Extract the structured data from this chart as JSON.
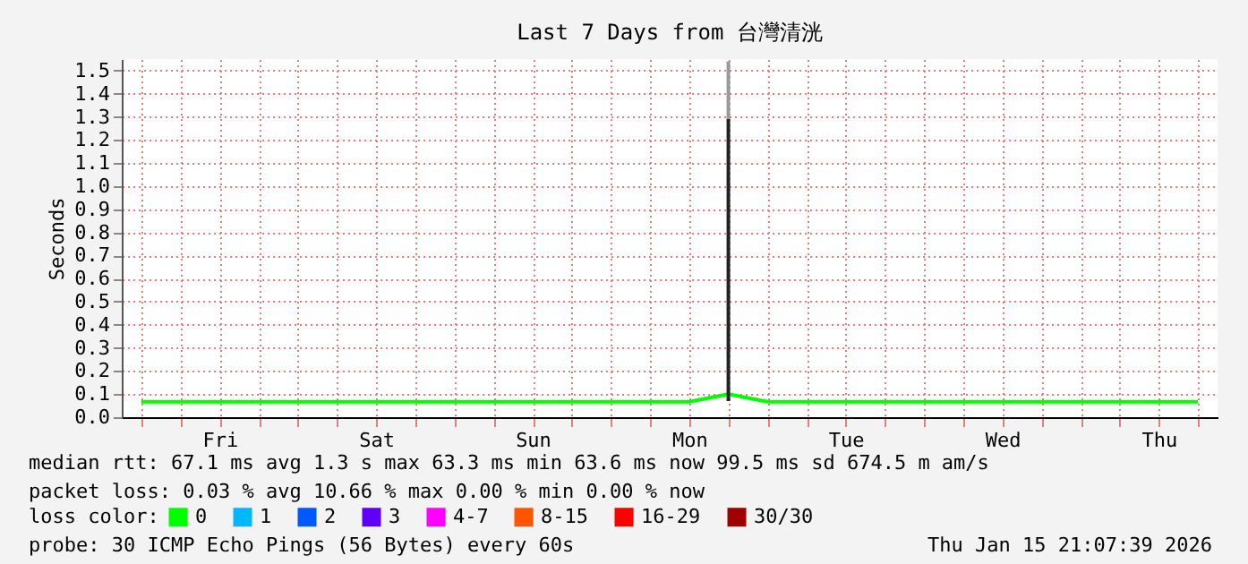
{
  "chart_data": {
    "type": "line",
    "title": "Last 7 Days from 台灣清洸",
    "ylabel": "Seconds",
    "categories": [
      null,
      null,
      "Fri",
      null,
      null,
      null,
      "Sat",
      null,
      null,
      null,
      "Sun",
      null,
      null,
      null,
      "Mon",
      null,
      null,
      null,
      "Tue",
      null,
      null,
      null,
      "Wed",
      null,
      null,
      null,
      "Thu",
      null
    ],
    "ylim": [
      0,
      1.55
    ],
    "yticks": [
      {
        "value": 0,
        "label": "0.0"
      },
      {
        "value": 0.1,
        "label": "0.1"
      },
      {
        "value": 0.2,
        "label": "0.2"
      },
      {
        "value": 0.3,
        "label": "0.3"
      },
      {
        "value": 0.4,
        "label": "0.4"
      },
      {
        "value": 0.5,
        "label": "0.5"
      },
      {
        "value": 0.6,
        "label": "0.6"
      },
      {
        "value": 0.7,
        "label": "0.7"
      },
      {
        "value": 0.8,
        "label": "0.8"
      },
      {
        "value": 0.9,
        "label": "0.9"
      },
      {
        "value": 1.0,
        "label": "1.0"
      },
      {
        "value": 1.1,
        "label": "1.1"
      },
      {
        "value": 1.2,
        "label": "1.2"
      },
      {
        "value": 1.3,
        "label": "1.3"
      },
      {
        "value": 1.4,
        "label": "1.4"
      },
      {
        "value": 1.5,
        "label": "1.5"
      }
    ],
    "grid": true,
    "legend": "bottom",
    "legend_title": "loss color:",
    "marker": "none",
    "line_style": "solid",
    "series": [
      {
        "name": "0",
        "color": "#00ff00",
        "values": [
          0.067,
          0.067,
          0.067,
          0.067,
          0.067,
          0.067,
          0.067,
          0.067,
          0.067,
          0.067,
          0.067,
          0.067,
          0.067,
          0.067,
          0.067,
          0.1,
          0.067,
          0.067,
          0.067,
          0.067,
          0.067,
          0.067,
          0.067,
          0.067,
          0.067,
          0.067,
          0.067,
          0.067
        ]
      },
      {
        "name": "1",
        "color": "#00b8ff",
        "values": [
          null,
          null,
          null,
          null,
          null,
          null,
          null,
          null,
          null,
          null,
          null,
          null,
          null,
          null,
          null,
          null,
          null,
          null,
          null,
          null,
          null,
          null,
          null,
          null,
          null,
          null,
          null,
          null
        ]
      },
      {
        "name": "2",
        "color": "#0059ff",
        "values": [
          null,
          null,
          null,
          null,
          null,
          null,
          null,
          null,
          null,
          null,
          null,
          null,
          null,
          null,
          null,
          null,
          null,
          null,
          null,
          null,
          null,
          null,
          null,
          null,
          null,
          null,
          null,
          null
        ]
      },
      {
        "name": "3",
        "color": "#5e00ff",
        "values": [
          null,
          null,
          null,
          null,
          null,
          null,
          null,
          null,
          null,
          null,
          null,
          null,
          null,
          null,
          null,
          null,
          null,
          null,
          null,
          null,
          null,
          null,
          null,
          null,
          null,
          null,
          null,
          null
        ]
      },
      {
        "name": "4-7",
        "color": "#ff00ff",
        "values": [
          null,
          null,
          null,
          null,
          null,
          null,
          null,
          null,
          null,
          null,
          null,
          null,
          null,
          null,
          null,
          null,
          null,
          null,
          null,
          null,
          null,
          null,
          null,
          null,
          null,
          null,
          null,
          null
        ]
      },
      {
        "name": "8-15",
        "color": "#ff5500",
        "values": [
          null,
          null,
          null,
          null,
          null,
          null,
          null,
          null,
          null,
          null,
          null,
          null,
          null,
          null,
          null,
          null,
          null,
          null,
          null,
          null,
          null,
          null,
          null,
          null,
          null,
          null,
          null,
          null
        ]
      },
      {
        "name": "16-29",
        "color": "#ff0000",
        "values": [
          null,
          null,
          null,
          null,
          null,
          null,
          null,
          null,
          null,
          null,
          null,
          null,
          null,
          null,
          null,
          null,
          null,
          null,
          null,
          null,
          null,
          null,
          null,
          null,
          null,
          null,
          null,
          null
        ]
      },
      {
        "name": "30/30",
        "color": "#a10000",
        "values": [
          null,
          null,
          null,
          null,
          null,
          null,
          null,
          null,
          null,
          null,
          null,
          null,
          null,
          null,
          null,
          null,
          null,
          null,
          null,
          null,
          null,
          null,
          null,
          null,
          null,
          null,
          null,
          null
        ]
      },
      {
        "type": "bar",
        "color": "#222222",
        "values": [
          null,
          null,
          null,
          null,
          null,
          null,
          null,
          null,
          null,
          null,
          null,
          null,
          null,
          null,
          null,
          1.22,
          null,
          null,
          null,
          null,
          null,
          null,
          null,
          null,
          null,
          null,
          null,
          null
        ],
        "base": [
          null,
          null,
          null,
          null,
          null,
          null,
          null,
          null,
          null,
          null,
          null,
          null,
          null,
          null,
          null,
          0.07,
          null,
          null,
          null,
          null,
          null,
          null,
          null,
          null,
          null,
          null,
          null,
          null
        ]
      },
      {
        "type": "bar",
        "color": "#999999",
        "values": [
          null,
          null,
          null,
          null,
          null,
          null,
          null,
          null,
          null,
          null,
          null,
          null,
          null,
          null,
          null,
          0.25,
          null,
          null,
          null,
          null,
          null,
          null,
          null,
          null,
          null,
          null,
          null,
          null
        ],
        "base": [
          null,
          null,
          null,
          null,
          null,
          null,
          null,
          null,
          null,
          null,
          null,
          null,
          null,
          null,
          null,
          1.29,
          null,
          null,
          null,
          null,
          null,
          null,
          null,
          null,
          null,
          null,
          null,
          null
        ]
      }
    ],
    "annotations": [
      "median rtt: 67.1 ms avg 1.3 s max 63.3 ms min 63.6 ms now 99.5 ms sd 674.5 m am/s",
      "packet loss: 0.03 % avg 10.66 % max 0.00 % min 0.00 % now",
      "probe: 30 ICMP Echo Pings (56 Bytes) every 60s",
      "Thu Jan 15 21:07:39 2026"
    ]
  }
}
